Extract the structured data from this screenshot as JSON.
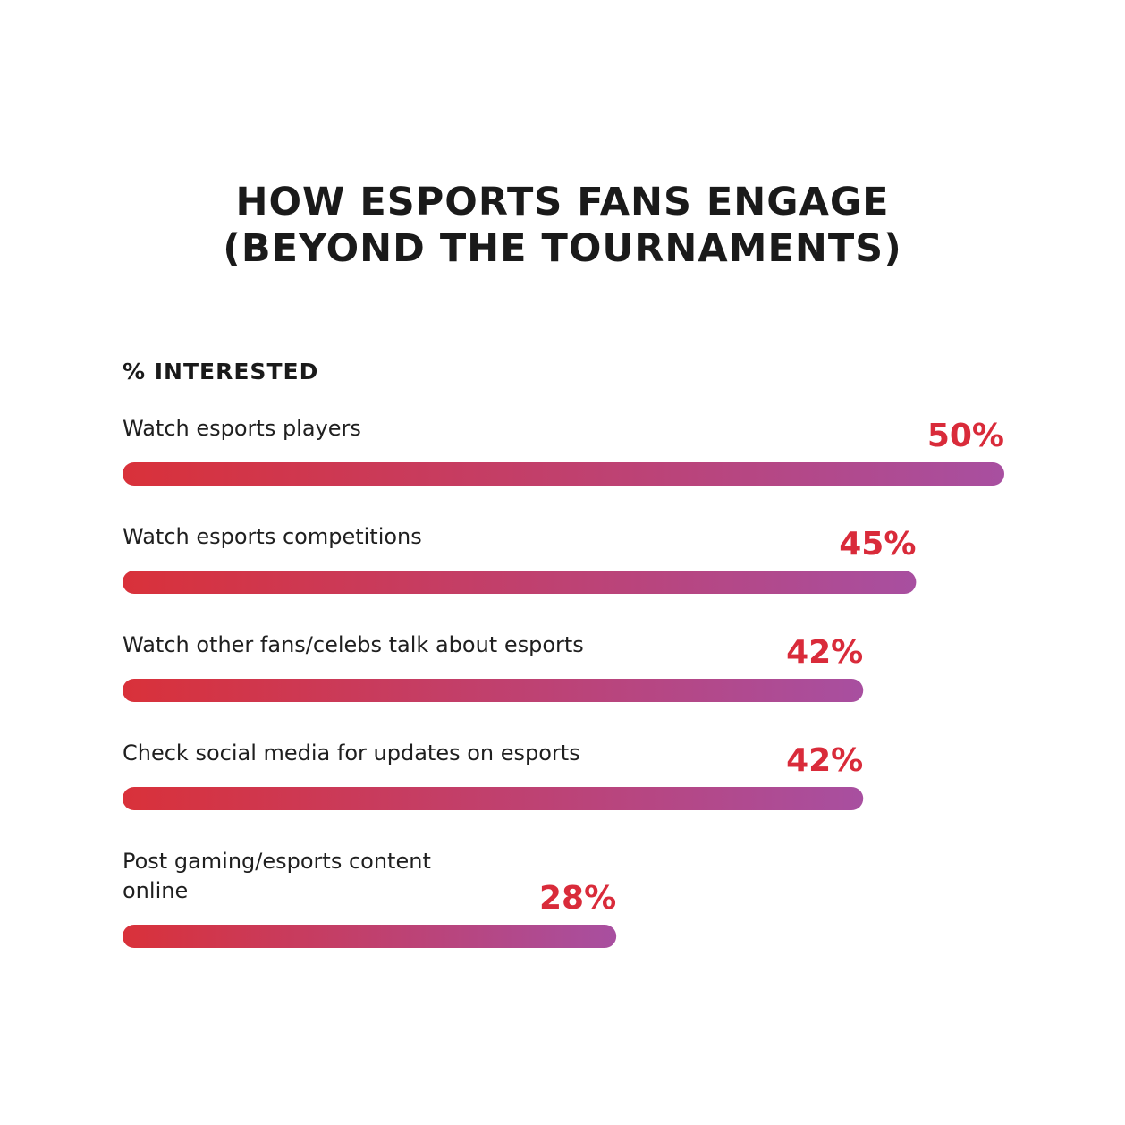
{
  "title_line1": "HOW ESPORTS FANS ENGAGE",
  "title_line2": "(BEYOND THE TOURNAMENTS)",
  "subtitle": "% INTERESTED",
  "colors": {
    "bar_start": "#d9313a",
    "bar_end": "#a84fa0",
    "value_text": "#d92b3a"
  },
  "chart_data": {
    "type": "bar",
    "orientation": "horizontal",
    "title": "HOW ESPORTS FANS ENGAGE (BEYOND THE TOURNAMENTS)",
    "ylabel": "% INTERESTED",
    "categories": [
      [
        "Watch esports players"
      ],
      [
        "Watch esports competitions"
      ],
      [
        "Watch other fans/celebs talk about esports"
      ],
      [
        "Check social media for updates on esports"
      ],
      [
        "Post gaming/esports content",
        "online"
      ]
    ],
    "values": [
      50,
      45,
      42,
      42,
      28
    ],
    "value_labels": [
      "50%",
      "45%",
      "42%",
      "42%",
      "28%"
    ],
    "xlim": [
      0,
      50
    ],
    "grid": false
  }
}
